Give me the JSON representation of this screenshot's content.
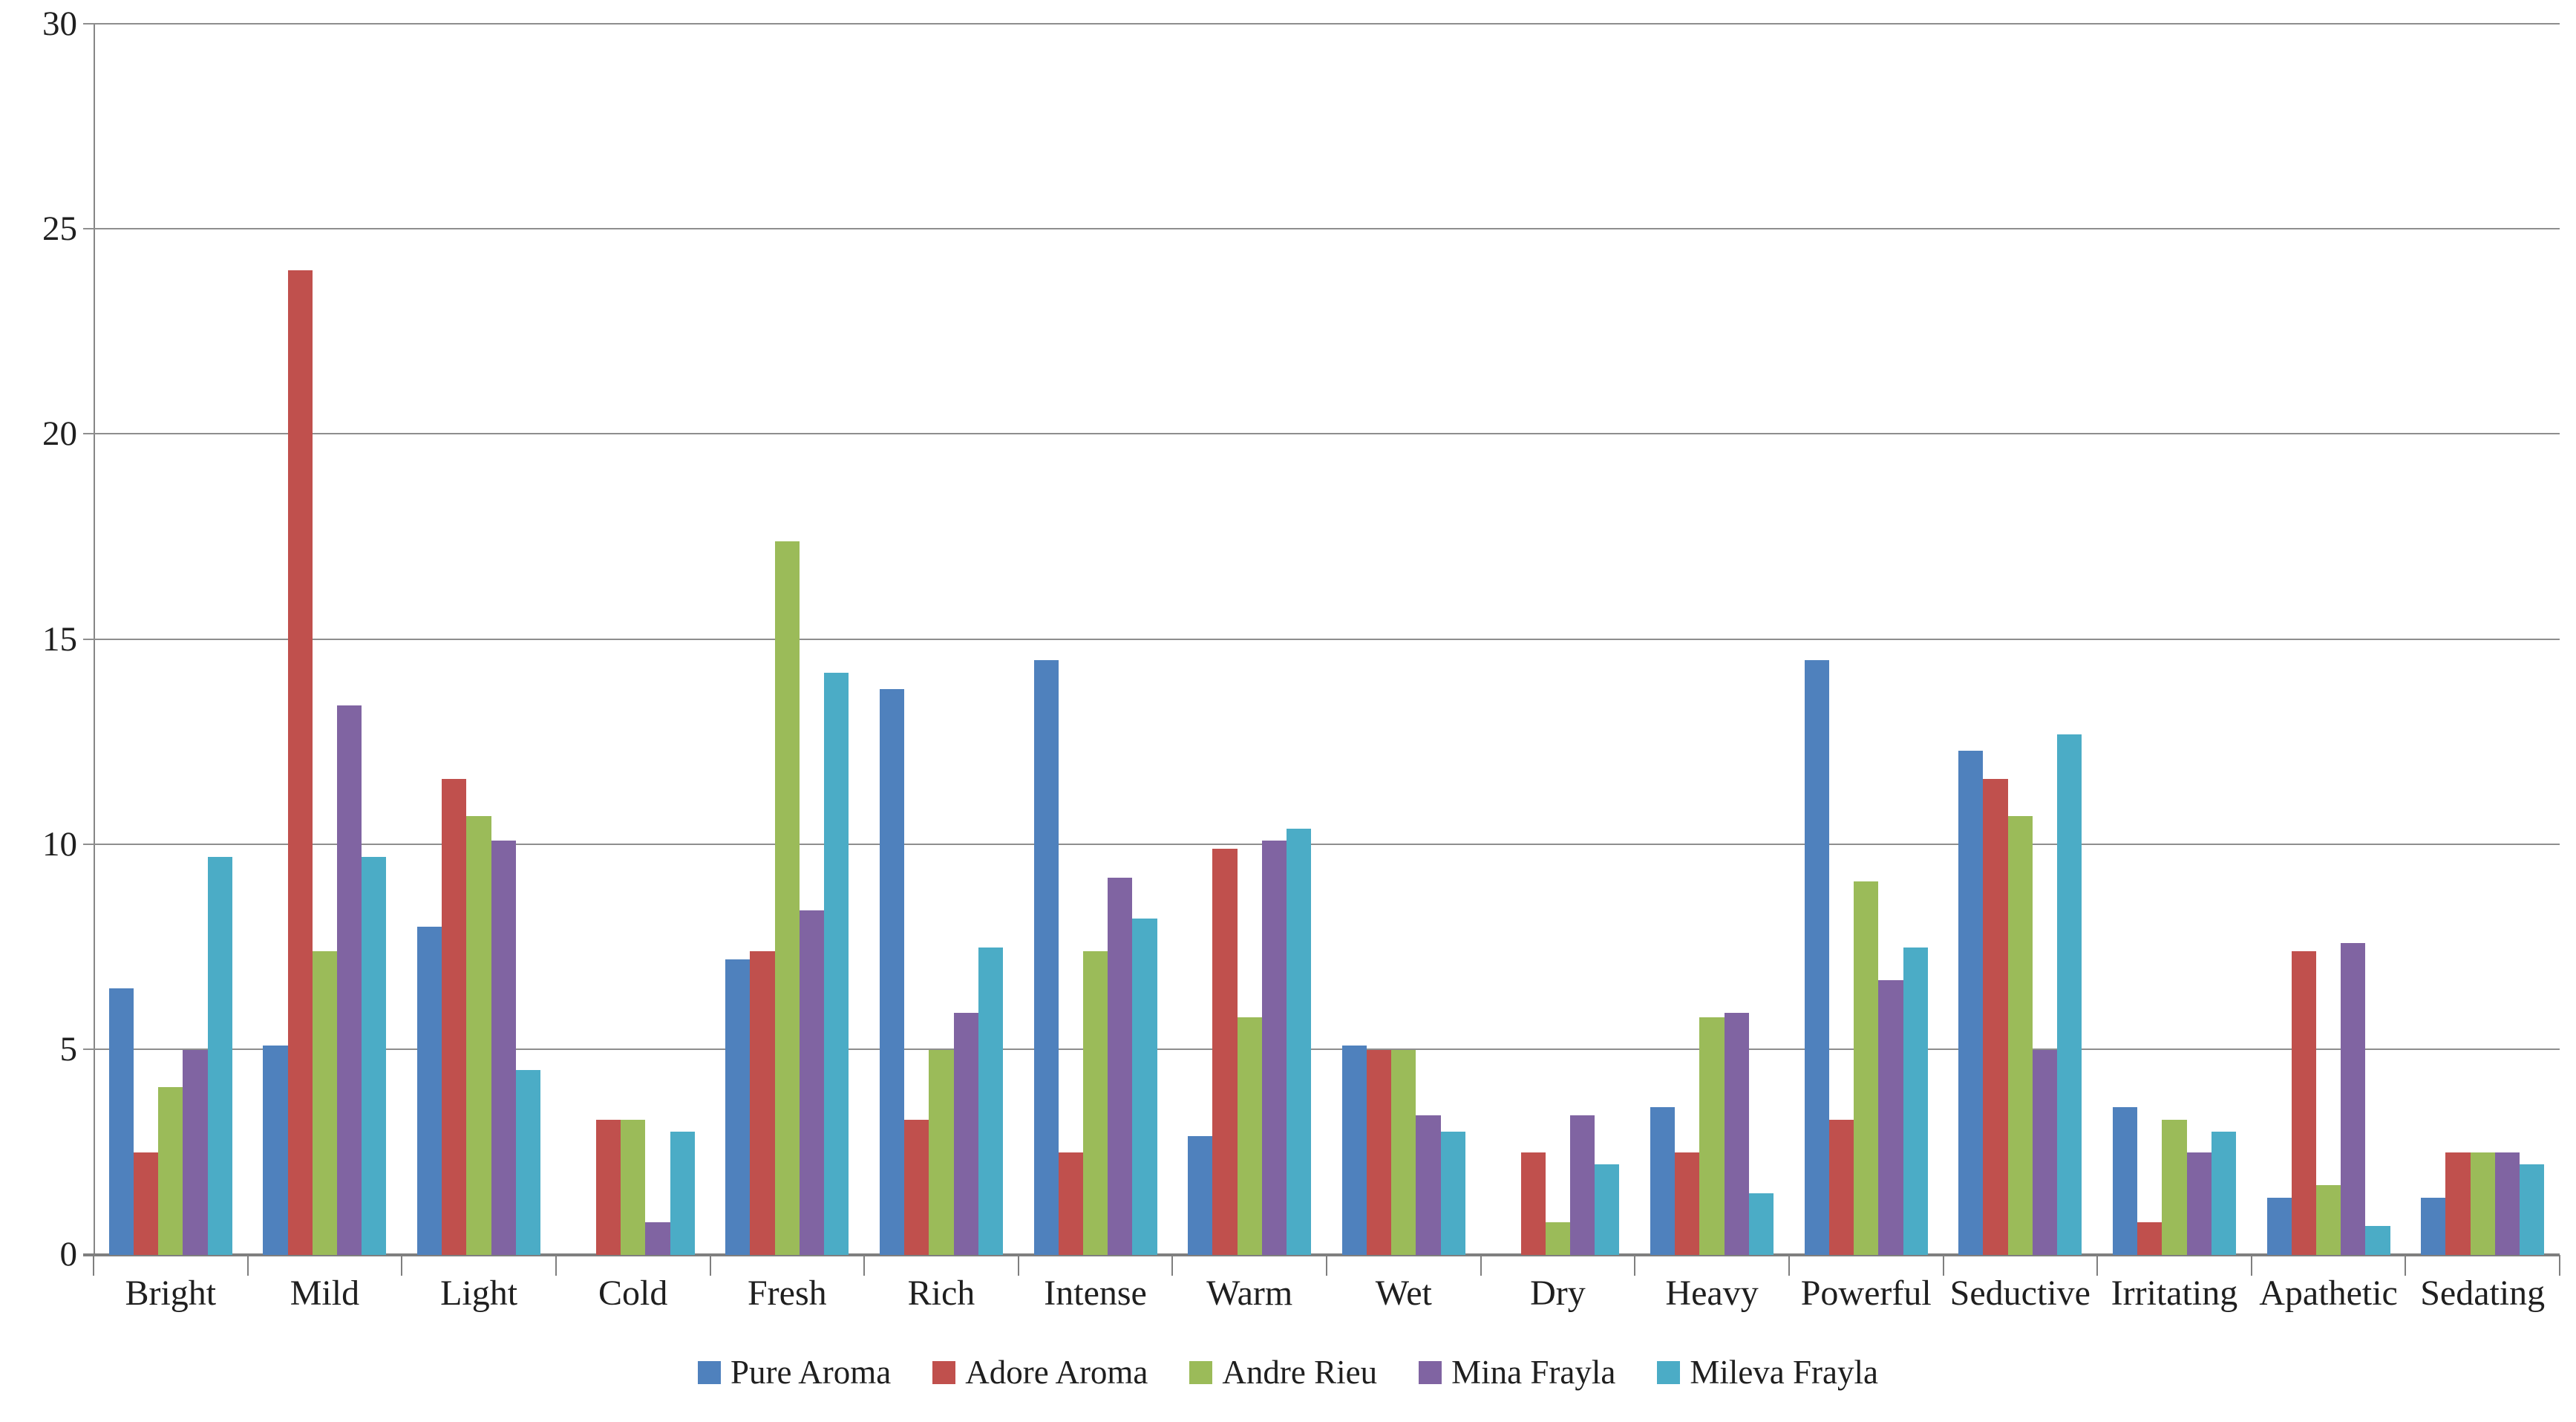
{
  "chart_data": {
    "type": "bar",
    "title": "",
    "xlabel": "",
    "ylabel": "",
    "ylim": [
      0,
      30
    ],
    "yticks": [
      0,
      5,
      10,
      15,
      20,
      25,
      30
    ],
    "grid": "horizontal",
    "legend_position": "bottom",
    "categories": [
      "Bright",
      "Mild",
      "Light",
      "Cold",
      "Fresh",
      "Rich",
      "Intense",
      "Warm",
      "Wet",
      "Dry",
      "Heavy",
      "Powerful",
      "Seductive",
      "Irritating",
      "Apathetic",
      "Sedating"
    ],
    "series": [
      {
        "name": "Pure Aroma",
        "color": "#4F81BD",
        "values": [
          6.5,
          5.1,
          8.0,
          0,
          7.2,
          13.8,
          14.5,
          2.9,
          5.1,
          0,
          3.6,
          14.5,
          12.3,
          3.6,
          1.4,
          1.4
        ]
      },
      {
        "name": "Adore Aroma",
        "color": "#C0504D",
        "values": [
          2.5,
          24,
          11.6,
          3.3,
          7.4,
          3.3,
          2.5,
          9.9,
          5.0,
          2.5,
          2.5,
          3.3,
          11.6,
          0.8,
          7.4,
          2.5
        ]
      },
      {
        "name": "Andre Rieu",
        "color": "#9BBB59",
        "values": [
          4.1,
          7.4,
          10.7,
          3.3,
          17.4,
          5.0,
          7.4,
          5.8,
          5.0,
          0.8,
          5.8,
          9.1,
          10.7,
          3.3,
          1.7,
          2.5
        ]
      },
      {
        "name": "Mina Frayla",
        "color": "#8064A2",
        "values": [
          5.0,
          13.4,
          10.1,
          0.8,
          8.4,
          5.9,
          9.2,
          10.1,
          3.4,
          3.4,
          5.9,
          6.7,
          5.0,
          2.5,
          7.6,
          2.5
        ]
      },
      {
        "name": "Mileva Frayla",
        "color": "#4BACC6",
        "values": [
          9.7,
          9.7,
          4.5,
          3.0,
          14.2,
          7.5,
          8.2,
          10.4,
          3.0,
          2.2,
          1.5,
          7.5,
          12.7,
          3.0,
          0.7,
          2.2
        ]
      }
    ],
    "grid_color": "#8e8e8e",
    "axis_color": "#7f7f7f",
    "text_color": "#1f1f1f"
  }
}
